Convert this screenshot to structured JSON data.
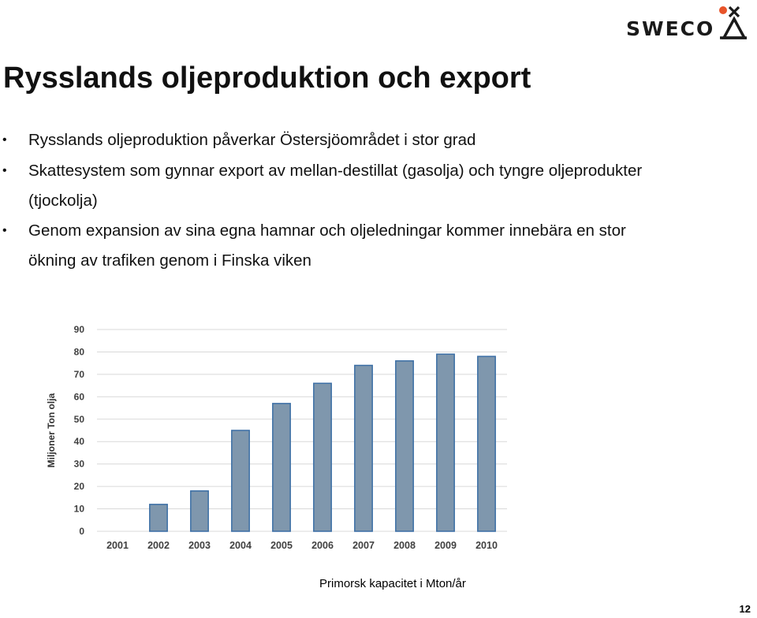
{
  "brand": {
    "name": "SWECO",
    "icon": "sweco-logo-icon",
    "accent_color": "#e8542a"
  },
  "slide": {
    "title": "Rysslands oljeproduktion och export",
    "bullets": [
      "Rysslands oljeproduktion påverkar Östersjöområdet i stor grad",
      "Skattesystem som gynnar export av mellan-destillat (gasolja) och tyngre oljeprodukter (tjockolja)",
      "Genom expansion av sina egna hamnar och oljeledningar kommer innebära en stor ökning av trafiken genom i Finska viken"
    ],
    "caption": "Primorsk kapacitet i Mton/år",
    "page_number": "12"
  },
  "chart_data": {
    "type": "bar",
    "title": "",
    "xlabel": "",
    "ylabel": "Miljoner Ton olja",
    "categories": [
      "2001",
      "2002",
      "2003",
      "2004",
      "2005",
      "2006",
      "2007",
      "2008",
      "2009",
      "2010"
    ],
    "values": [
      0,
      12,
      18,
      45,
      57,
      66,
      74,
      76,
      79,
      78
    ],
    "ylim": [
      0,
      90
    ],
    "yticks": [
      0,
      10,
      20,
      30,
      40,
      50,
      60,
      70,
      80,
      90
    ],
    "grid": true,
    "legend": "none",
    "bar_color": "#7f97ad",
    "bar_edge_color": "#3b6ea5"
  }
}
